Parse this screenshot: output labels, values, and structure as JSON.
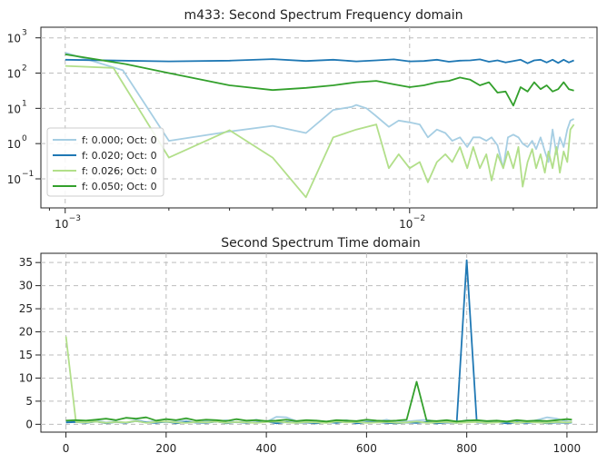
{
  "chart_data": [
    {
      "type": "line",
      "title": "m433: Second Spectrum Frequency domain",
      "xscale": "log",
      "yscale": "log",
      "xlim": [
        0.00085,
        0.035
      ],
      "ylim": [
        0.015,
        2000
      ],
      "x_ticks": [
        {
          "base": "10",
          "exp": "−3",
          "value": 0.001
        },
        {
          "base": "10",
          "exp": "−2",
          "value": 0.01
        }
      ],
      "y_ticks": [
        {
          "base": "10",
          "exp": "3",
          "value": 1000
        },
        {
          "base": "10",
          "exp": "2",
          "value": 100
        },
        {
          "base": "10",
          "exp": "1",
          "value": 10
        },
        {
          "base": "10",
          "exp": "0",
          "value": 1
        },
        {
          "base": "10",
          "exp": "−1",
          "value": 0.1
        }
      ],
      "grid": true,
      "legend_position": "lower-left",
      "series": [
        {
          "name": "f: 0.000; Oct: 0",
          "color": "#a6cee3",
          "x": [
            0.001,
            0.00147,
            0.002,
            0.003,
            0.004,
            0.005,
            0.006,
            0.0068,
            0.007,
            0.0075,
            0.008,
            0.0087,
            0.0093,
            0.01,
            0.0107,
            0.0113,
            0.012,
            0.0127,
            0.0133,
            0.014,
            0.0147,
            0.0153,
            0.016,
            0.0167,
            0.0173,
            0.018,
            0.0187,
            0.0193,
            0.02,
            0.0207,
            0.0213,
            0.022,
            0.0227,
            0.0233,
            0.024,
            0.0247,
            0.0253,
            0.026,
            0.0267,
            0.0273,
            0.028,
            0.0287,
            0.0293,
            0.03
          ],
          "y": [
            380,
            120,
            1.2,
            2.2,
            3.2,
            2.0,
            9.0,
            11.0,
            12.5,
            10.0,
            6.0,
            3.0,
            4.5,
            4.0,
            3.5,
            1.5,
            2.5,
            2.0,
            1.2,
            1.5,
            0.8,
            1.5,
            1.5,
            1.2,
            1.5,
            0.9,
            0.2,
            1.5,
            1.8,
            1.5,
            1.0,
            0.8,
            1.2,
            0.7,
            1.5,
            0.6,
            0.3,
            2.5,
            0.5,
            1.5,
            0.8,
            2.5,
            4.5,
            5.0
          ]
        },
        {
          "name": "f: 0.020; Oct: 0",
          "color": "#1f78b4",
          "x": [
            0.001,
            0.002,
            0.003,
            0.004,
            0.005,
            0.006,
            0.007,
            0.008,
            0.009,
            0.01,
            0.011,
            0.012,
            0.013,
            0.014,
            0.015,
            0.016,
            0.017,
            0.018,
            0.019,
            0.02,
            0.021,
            0.022,
            0.023,
            0.024,
            0.025,
            0.026,
            0.027,
            0.028,
            0.029,
            0.03
          ],
          "y": [
            240,
            215,
            225,
            250,
            220,
            240,
            215,
            230,
            245,
            215,
            220,
            240,
            210,
            225,
            230,
            245,
            210,
            230,
            200,
            220,
            240,
            190,
            230,
            240,
            200,
            240,
            195,
            240,
            200,
            230
          ]
        },
        {
          "name": "f: 0.026; Oct: 0",
          "color": "#b2df8a",
          "x": [
            0.001,
            0.00138,
            0.002,
            0.003,
            0.004,
            0.005,
            0.006,
            0.007,
            0.008,
            0.0087,
            0.0093,
            0.01,
            0.0107,
            0.0113,
            0.012,
            0.0127,
            0.0133,
            0.014,
            0.0147,
            0.0153,
            0.016,
            0.0167,
            0.0173,
            0.018,
            0.0187,
            0.0193,
            0.02,
            0.0207,
            0.0213,
            0.022,
            0.0227,
            0.0233,
            0.024,
            0.0247,
            0.0253,
            0.026,
            0.0267,
            0.0273,
            0.028,
            0.0287,
            0.0293,
            0.03
          ],
          "y": [
            160,
            140,
            0.4,
            2.4,
            0.4,
            0.03,
            1.5,
            2.5,
            3.5,
            0.2,
            0.5,
            0.2,
            0.3,
            0.08,
            0.3,
            0.5,
            0.3,
            0.8,
            0.2,
            0.8,
            0.2,
            0.5,
            0.09,
            0.5,
            0.2,
            0.6,
            0.2,
            0.8,
            0.06,
            0.3,
            0.7,
            0.2,
            0.5,
            0.15,
            0.6,
            0.2,
            0.8,
            0.15,
            0.6,
            0.3,
            2.5,
            3.5
          ]
        },
        {
          "name": "f: 0.050; Oct: 0",
          "color": "#33a02c",
          "x": [
            0.001,
            0.0015,
            0.002,
            0.003,
            0.004,
            0.005,
            0.006,
            0.007,
            0.008,
            0.009,
            0.01,
            0.011,
            0.012,
            0.013,
            0.014,
            0.015,
            0.016,
            0.017,
            0.018,
            0.019,
            0.02,
            0.021,
            0.022,
            0.023,
            0.024,
            0.025,
            0.026,
            0.027,
            0.028,
            0.029,
            0.03
          ],
          "y": [
            340,
            180,
            100,
            45,
            33,
            38,
            45,
            55,
            60,
            48,
            40,
            45,
            55,
            60,
            75,
            65,
            45,
            55,
            28,
            30,
            12,
            40,
            30,
            55,
            35,
            45,
            30,
            35,
            55,
            35,
            32
          ]
        }
      ]
    },
    {
      "type": "line",
      "title": "Second Spectrum Time domain",
      "xlim": [
        -50,
        1060
      ],
      "ylim": [
        -1.7,
        37
      ],
      "x_ticks": [
        "0",
        "200",
        "400",
        "600",
        "800",
        "1000"
      ],
      "x_tick_values": [
        0,
        200,
        400,
        600,
        800,
        1000
      ],
      "y_ticks": [
        "0",
        "5",
        "10",
        "15",
        "20",
        "25",
        "30",
        "35"
      ],
      "y_tick_values": [
        0,
        5,
        10,
        15,
        20,
        25,
        30,
        35
      ],
      "grid": true,
      "series": [
        {
          "name": "f: 0.000; Oct: 0",
          "color": "#a6cee3",
          "x": [
            0,
            20,
            40,
            60,
            80,
            100,
            120,
            140,
            160,
            180,
            200,
            220,
            240,
            260,
            280,
            300,
            320,
            340,
            360,
            380,
            400,
            420,
            440,
            460,
            480,
            500,
            520,
            540,
            560,
            580,
            600,
            620,
            640,
            660,
            680,
            700,
            720,
            740,
            760,
            780,
            800,
            820,
            840,
            860,
            880,
            900,
            920,
            940,
            960,
            980,
            1000,
            1010
          ],
          "y": [
            0.5,
            0.7,
            0.3,
            0.8,
            0.4,
            0.6,
            0.3,
            0.9,
            0.5,
            0.7,
            0.4,
            0.6,
            0.8,
            0.3,
            0.7,
            0.5,
            0.9,
            0.4,
            0.6,
            1.0,
            0.5,
            1.6,
            1.5,
            0.7,
            0.4,
            0.8,
            0.5,
            0.6,
            0.9,
            0.4,
            0.7,
            0.5,
            1.0,
            0.4,
            0.6,
            0.8,
            1.0,
            0.5,
            0.7,
            0.4,
            0.9,
            0.6,
            0.5,
            0.8,
            0.4,
            0.7,
            0.5,
            0.9,
            1.5,
            1.2,
            0.6,
            0.5
          ]
        },
        {
          "name": "f: 0.020; Oct: 0",
          "color": "#1f78b4",
          "x": [
            0,
            20,
            40,
            60,
            80,
            100,
            120,
            140,
            160,
            180,
            200,
            220,
            240,
            260,
            280,
            300,
            320,
            340,
            360,
            380,
            400,
            420,
            440,
            460,
            480,
            500,
            520,
            540,
            560,
            580,
            600,
            620,
            640,
            660,
            680,
            700,
            720,
            740,
            760,
            780,
            800,
            820,
            840,
            860,
            880,
            900,
            920,
            940,
            960,
            980,
            1000,
            1010
          ],
          "y": [
            0.4,
            0.5,
            0.3,
            0.6,
            0.2,
            0.5,
            0.3,
            0.7,
            0.4,
            0.3,
            0.6,
            0.2,
            0.5,
            0.4,
            0.3,
            0.6,
            0.2,
            0.5,
            0.3,
            0.4,
            0.6,
            0.2,
            0.5,
            0.3,
            0.4,
            0.2,
            0.5,
            0.3,
            0.6,
            0.2,
            0.4,
            0.5,
            0.3,
            0.2,
            0.4,
            0.3,
            0.5,
            0.2,
            0.4,
            0.3,
            35.5,
            0.4,
            0.3,
            0.5,
            0.2,
            0.4,
            0.3,
            0.5,
            0.2,
            0.4,
            0.3,
            0.4
          ]
        },
        {
          "name": "f: 0.026; Oct: 0",
          "color": "#b2df8a",
          "x": [
            0,
            20,
            40,
            60,
            80,
            100,
            120,
            140,
            160,
            180,
            200,
            220,
            240,
            260,
            280,
            300,
            320,
            340,
            360,
            380,
            400,
            420,
            440,
            460,
            480,
            500,
            520,
            540,
            560,
            580,
            600,
            620,
            640,
            660,
            680,
            700,
            720,
            740,
            760,
            780,
            800,
            820,
            840,
            860,
            880,
            900,
            920,
            940,
            960,
            980,
            1000,
            1010
          ],
          "y": [
            19,
            0.5,
            0.4,
            0.6,
            0.3,
            0.5,
            0.4,
            0.7,
            0.3,
            0.5,
            0.6,
            0.4,
            0.3,
            0.5,
            0.4,
            0.6,
            0.3,
            0.5,
            0.4,
            0.3,
            0.5,
            0.6,
            0.4,
            0.3,
            0.5,
            0.4,
            0.3,
            0.6,
            0.4,
            0.5,
            0.3,
            0.4,
            0.5,
            0.3,
            0.4,
            0.6,
            0.3,
            0.4,
            0.5,
            0.3,
            0.4,
            0.5,
            0.3,
            0.4,
            0.6,
            0.3,
            0.5,
            0.4,
            0.3,
            0.5,
            0.4,
            0.5
          ]
        },
        {
          "name": "f: 0.050; Oct: 0",
          "color": "#33a02c",
          "x": [
            0,
            20,
            40,
            60,
            80,
            100,
            120,
            140,
            160,
            180,
            200,
            220,
            240,
            260,
            280,
            300,
            320,
            340,
            360,
            380,
            400,
            420,
            440,
            460,
            480,
            500,
            520,
            540,
            560,
            580,
            600,
            620,
            640,
            660,
            680,
            700,
            720,
            740,
            760,
            780,
            800,
            820,
            840,
            860,
            880,
            900,
            920,
            940,
            960,
            980,
            1000,
            1010
          ],
          "y": [
            0.8,
            0.9,
            0.8,
            1.0,
            1.2,
            0.9,
            1.4,
            1.2,
            1.5,
            0.8,
            1.1,
            0.9,
            1.3,
            0.8,
            1.0,
            0.9,
            0.7,
            1.1,
            0.8,
            0.9,
            0.7,
            0.8,
            1.0,
            0.7,
            0.9,
            0.8,
            0.6,
            0.9,
            0.8,
            0.7,
            1.0,
            0.8,
            0.7,
            0.8,
            1.0,
            9.2,
            0.8,
            0.7,
            0.9,
            0.6,
            0.8,
            0.9,
            0.7,
            0.8,
            0.6,
            0.9,
            0.7,
            0.8,
            0.7,
            0.9,
            1.1,
            1.0
          ]
        }
      ]
    }
  ]
}
